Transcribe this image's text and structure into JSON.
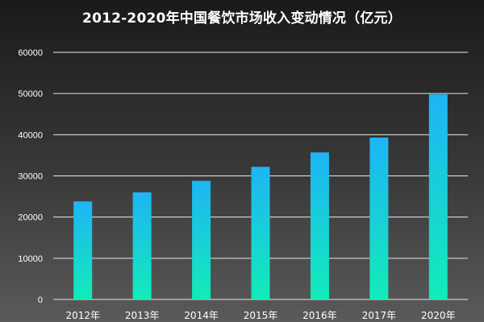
{
  "chart_data": {
    "type": "bar",
    "title": "2012-2020年中国餐饮市场收入变动情况（亿元）",
    "categories": [
      "2012年",
      "2013年",
      "2014年",
      "2015年",
      "2016年",
      "2017年",
      "2020年"
    ],
    "values": [
      23800,
      26000,
      28800,
      32200,
      35700,
      39300,
      49800
    ],
    "yticks": [
      "0",
      "10000",
      "20000",
      "30000",
      "40000",
      "50000",
      "60000"
    ],
    "ylim": [
      0,
      60000
    ],
    "xlabel": "",
    "ylabel": "",
    "grid": true,
    "colors": {
      "bar_top": "#1eb4f5",
      "bar_bottom": "#12ecb8",
      "gridline": "#e6e6e6"
    }
  }
}
